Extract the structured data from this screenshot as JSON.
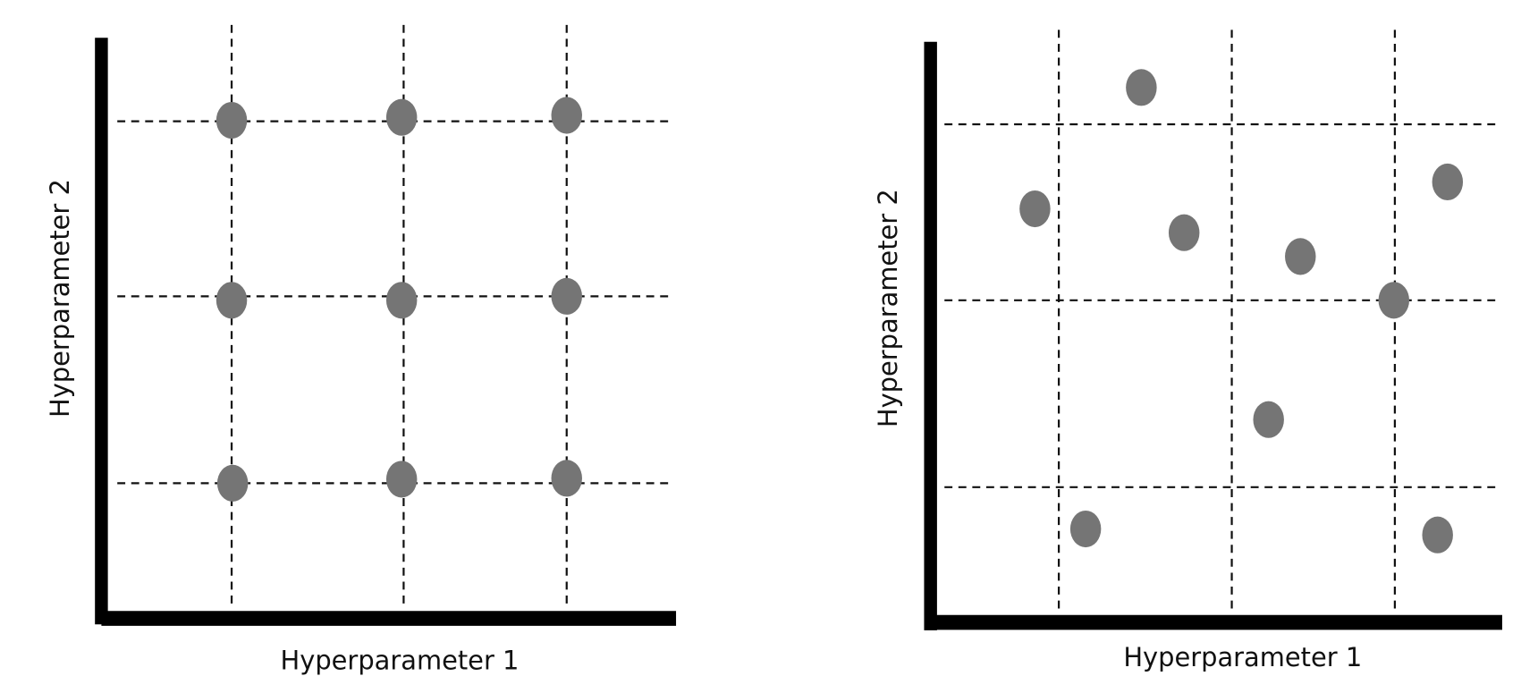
{
  "panels": [
    {
      "x_label": "Hyperparameter 1",
      "y_label": "Hyperparameter 2"
    },
    {
      "x_label": "Hyperparameter 1",
      "y_label": "Hyperparameter 2"
    }
  ]
}
